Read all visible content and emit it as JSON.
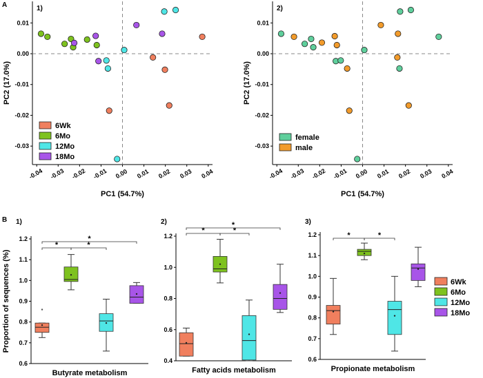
{
  "figure": {
    "panel_a": "A",
    "panel_b": "B"
  },
  "colors": {
    "6Wk": "#f07f5e",
    "6Mo": "#7ec21f",
    "12Mo": "#4fe6e6",
    "18Mo": "#a855e8",
    "female": "#5fcf9c",
    "male": "#f29b2b"
  },
  "chart_data": [
    {
      "type": "scatter",
      "panel": "1)",
      "xlabel": "PC1 (54.7%)",
      "ylabel": "PC2 (17.0%)",
      "xlim": [
        -0.042,
        0.042
      ],
      "ylim": [
        -0.036,
        0.017
      ],
      "xticks": [
        "-0.04",
        "-0.03",
        "-0.02",
        "-0.01",
        "0.00",
        "0.01",
        "0.02",
        "0.03",
        "0.04"
      ],
      "yticks": [
        "0.01",
        "0.00",
        "-0.01",
        "-0.02",
        "-0.03"
      ],
      "legend": [
        "6Wk",
        "6Mo",
        "12Mo",
        "18Mo"
      ],
      "legend_position": "bottom-left",
      "points": [
        {
          "x": -0.038,
          "y": 0.0065,
          "g": "6Mo"
        },
        {
          "x": -0.035,
          "y": 0.0055,
          "g": "6Mo"
        },
        {
          "x": -0.027,
          "y": 0.0032,
          "g": "6Mo"
        },
        {
          "x": -0.024,
          "y": 0.0048,
          "g": "6Mo"
        },
        {
          "x": -0.023,
          "y": 0.0021,
          "g": "6Mo"
        },
        {
          "x": -0.0165,
          "y": 0.0046,
          "g": "6Mo"
        },
        {
          "x": -0.012,
          "y": 0.0028,
          "g": "6Mo"
        },
        {
          "x": -0.0225,
          "y": 0.0035,
          "g": "18Mo"
        },
        {
          "x": -0.0125,
          "y": 0.0058,
          "g": "18Mo"
        },
        {
          "x": -0.0112,
          "y": -0.0024,
          "g": "18Mo"
        },
        {
          "x": 0.0065,
          "y": 0.0093,
          "g": "18Mo"
        },
        {
          "x": 0.0185,
          "y": 0.0065,
          "g": "18Mo"
        },
        {
          "x": -0.0075,
          "y": -0.0022,
          "g": "12Mo"
        },
        {
          "x": -0.0068,
          "y": -0.0048,
          "g": "12Mo"
        },
        {
          "x": 0.0008,
          "y": 0.0012,
          "g": "12Mo"
        },
        {
          "x": 0.0195,
          "y": 0.0137,
          "g": "12Mo"
        },
        {
          "x": 0.0248,
          "y": 0.0142,
          "g": "12Mo"
        },
        {
          "x": -0.0025,
          "y": -0.0342,
          "g": "12Mo"
        },
        {
          "x": -0.0062,
          "y": -0.0185,
          "g": "6Wk"
        },
        {
          "x": 0.0142,
          "y": -0.0012,
          "g": "6Wk"
        },
        {
          "x": 0.0198,
          "y": -0.0052,
          "g": "6Wk"
        },
        {
          "x": 0.0218,
          "y": -0.0168,
          "g": "6Wk"
        },
        {
          "x": 0.0372,
          "y": 0.0055,
          "g": "6Wk"
        }
      ]
    },
    {
      "type": "scatter",
      "panel": "2)",
      "xlabel": "PC1 (54.7%)",
      "ylabel": "PC2 (17.0%)",
      "xlim": [
        -0.042,
        0.042
      ],
      "ylim": [
        -0.036,
        0.017
      ],
      "xticks": [
        "-0.04",
        "-0.03",
        "-0.02",
        "-0.01",
        "0.00",
        "0.01",
        "0.02",
        "0.03",
        "0.04"
      ],
      "yticks": [
        "0.01",
        "0.00",
        "-0.01",
        "-0.02",
        "-0.03"
      ],
      "legend": [
        "female",
        "male"
      ],
      "legend_position": "bottom-left",
      "points": [
        {
          "x": -0.038,
          "y": 0.0065,
          "g": "female"
        },
        {
          "x": -0.027,
          "y": 0.0032,
          "g": "female"
        },
        {
          "x": -0.024,
          "y": 0.0048,
          "g": "female"
        },
        {
          "x": -0.023,
          "y": 0.0021,
          "g": "female"
        },
        {
          "x": -0.0125,
          "y": -0.0024,
          "g": "female"
        },
        {
          "x": -0.0102,
          "y": -0.0022,
          "g": "female"
        },
        {
          "x": 0.0008,
          "y": 0.0012,
          "g": "female"
        },
        {
          "x": 0.0172,
          "y": -0.0048,
          "g": "female"
        },
        {
          "x": 0.0175,
          "y": 0.0137,
          "g": "female"
        },
        {
          "x": 0.0225,
          "y": 0.0142,
          "g": "female"
        },
        {
          "x": 0.0355,
          "y": 0.0055,
          "g": "female"
        },
        {
          "x": -0.0025,
          "y": -0.0342,
          "g": "female"
        },
        {
          "x": -0.032,
          "y": 0.0055,
          "g": "male"
        },
        {
          "x": -0.019,
          "y": 0.0036,
          "g": "male"
        },
        {
          "x": -0.013,
          "y": 0.0057,
          "g": "male"
        },
        {
          "x": -0.012,
          "y": 0.0028,
          "g": "male"
        },
        {
          "x": -0.0072,
          "y": -0.0048,
          "g": "male"
        },
        {
          "x": -0.0062,
          "y": -0.0185,
          "g": "male"
        },
        {
          "x": 0.0085,
          "y": 0.0093,
          "g": "male"
        },
        {
          "x": 0.0165,
          "y": 0.0065,
          "g": "male"
        },
        {
          "x": 0.0162,
          "y": -0.0012,
          "g": "male"
        },
        {
          "x": 0.0215,
          "y": -0.0168,
          "g": "male"
        }
      ]
    },
    {
      "type": "box",
      "panel": "1)",
      "title": "Butyrate metabolism",
      "ylabel": "Proportion of sequences (%)",
      "ylim": [
        0.6,
        1.2
      ],
      "yticks": [
        "1.2",
        "1.1",
        "1.0",
        "0.9",
        "0.8",
        "0.7",
        "0.6"
      ],
      "boxes": [
        {
          "g": "6Wk",
          "min": 0.725,
          "q1": 0.75,
          "med": 0.775,
          "q3": 0.795,
          "max": 0.795,
          "mean": 0.785,
          "outliers": [
            0.86
          ]
        },
        {
          "g": "6Mo",
          "min": 0.955,
          "q1": 0.995,
          "med": 1.005,
          "q3": 1.065,
          "max": 1.125,
          "mean": 1.027,
          "outliers": []
        },
        {
          "g": "12Mo",
          "min": 0.66,
          "q1": 0.755,
          "med": 0.805,
          "q3": 0.84,
          "max": 0.91,
          "mean": 0.795,
          "outliers": []
        },
        {
          "g": "18Mo",
          "min": 0.89,
          "q1": 0.89,
          "med": 0.92,
          "q3": 0.975,
          "max": 0.99,
          "mean": 0.935,
          "outliers": []
        }
      ],
      "brackets": [
        {
          "from": 0,
          "to": 1,
          "level": 1,
          "label": "*"
        },
        {
          "from": 1,
          "to": 2,
          "level": 1,
          "label": "*"
        },
        {
          "from": 0,
          "to": 3,
          "level": 2,
          "label": "*"
        }
      ]
    },
    {
      "type": "box",
      "panel": "2)",
      "title": "Fatty acids metabolism",
      "ylim": [
        0.4,
        1.2
      ],
      "yticks": [
        "1.2",
        "1.0",
        "0.8",
        "0.6",
        "0.4"
      ],
      "boxes": [
        {
          "g": "6Wk",
          "min": 0.43,
          "q1": 0.43,
          "med": 0.51,
          "q3": 0.58,
          "max": 0.61,
          "mean": 0.515,
          "outliers": []
        },
        {
          "g": "6Mo",
          "min": 0.9,
          "q1": 0.97,
          "med": 0.99,
          "q3": 1.07,
          "max": 1.18,
          "mean": 1.02,
          "outliers": []
        },
        {
          "g": "12Mo",
          "min": 0.4,
          "q1": 0.405,
          "med": 0.53,
          "q3": 0.69,
          "max": 0.79,
          "mean": 0.57,
          "outliers": []
        },
        {
          "g": "18Mo",
          "min": 0.71,
          "q1": 0.73,
          "med": 0.8,
          "q3": 0.89,
          "max": 1.02,
          "mean": 0.835,
          "outliers": []
        }
      ],
      "brackets": [
        {
          "from": 0,
          "to": 1,
          "level": 1,
          "label": "*"
        },
        {
          "from": 1,
          "to": 2,
          "level": 1,
          "label": "*"
        },
        {
          "from": 0,
          "to": 3,
          "level": 2,
          "label": "*"
        }
      ]
    },
    {
      "type": "box",
      "panel": "3)",
      "title": "Propionate metabolism",
      "ylim": [
        0.6,
        1.2
      ],
      "yticks": [
        "1.2",
        "1.1",
        "1.0",
        "0.9",
        "0.8",
        "0.7",
        "0.6"
      ],
      "boxes": [
        {
          "g": "6Wk",
          "min": 0.72,
          "q1": 0.77,
          "med": 0.835,
          "q3": 0.86,
          "max": 0.99,
          "mean": 0.83,
          "outliers": []
        },
        {
          "g": "6Mo",
          "min": 1.08,
          "q1": 1.1,
          "med": 1.12,
          "q3": 1.13,
          "max": 1.16,
          "mean": 1.11,
          "outliers": []
        },
        {
          "g": "12Mo",
          "min": 0.64,
          "q1": 0.72,
          "med": 0.84,
          "q3": 0.88,
          "max": 1.0,
          "mean": 0.81,
          "outliers": []
        },
        {
          "g": "18Mo",
          "min": 0.95,
          "q1": 0.98,
          "med": 1.04,
          "q3": 1.06,
          "max": 1.14,
          "mean": 1.035,
          "outliers": []
        }
      ],
      "brackets": [
        {
          "from": 0,
          "to": 1,
          "level": 1,
          "label": "*"
        },
        {
          "from": 1,
          "to": 2,
          "level": 1,
          "label": "*"
        }
      ],
      "legend": [
        "6Wk",
        "6Mo",
        "12Mo",
        "18Mo"
      ],
      "legend_position": "right"
    }
  ]
}
